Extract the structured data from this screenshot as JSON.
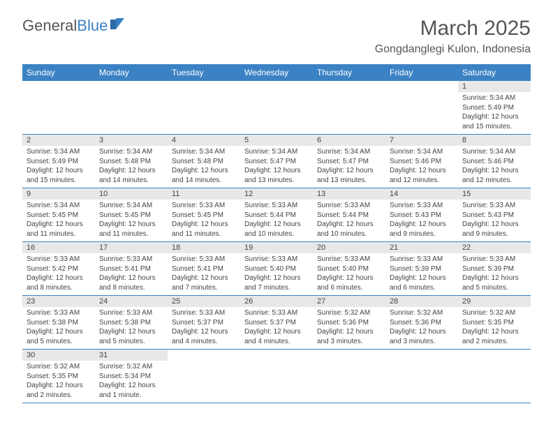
{
  "logo": {
    "text1": "General",
    "text2": "Blue"
  },
  "title": "March 2025",
  "location": "Gongdanglegi Kulon, Indonesia",
  "colors": {
    "header_bg": "#3b82c4",
    "header_text": "#ffffff",
    "daynum_bg": "#e8e8e8",
    "border": "#3b82c4"
  },
  "day_headers": [
    "Sunday",
    "Monday",
    "Tuesday",
    "Wednesday",
    "Thursday",
    "Friday",
    "Saturday"
  ],
  "weeks": [
    [
      null,
      null,
      null,
      null,
      null,
      null,
      {
        "n": "1",
        "sr": "Sunrise: 5:34 AM",
        "ss": "Sunset: 5:49 PM",
        "dl": "Daylight: 12 hours and 15 minutes."
      }
    ],
    [
      {
        "n": "2",
        "sr": "Sunrise: 5:34 AM",
        "ss": "Sunset: 5:49 PM",
        "dl": "Daylight: 12 hours and 15 minutes."
      },
      {
        "n": "3",
        "sr": "Sunrise: 5:34 AM",
        "ss": "Sunset: 5:48 PM",
        "dl": "Daylight: 12 hours and 14 minutes."
      },
      {
        "n": "4",
        "sr": "Sunrise: 5:34 AM",
        "ss": "Sunset: 5:48 PM",
        "dl": "Daylight: 12 hours and 14 minutes."
      },
      {
        "n": "5",
        "sr": "Sunrise: 5:34 AM",
        "ss": "Sunset: 5:47 PM",
        "dl": "Daylight: 12 hours and 13 minutes."
      },
      {
        "n": "6",
        "sr": "Sunrise: 5:34 AM",
        "ss": "Sunset: 5:47 PM",
        "dl": "Daylight: 12 hours and 13 minutes."
      },
      {
        "n": "7",
        "sr": "Sunrise: 5:34 AM",
        "ss": "Sunset: 5:46 PM",
        "dl": "Daylight: 12 hours and 12 minutes."
      },
      {
        "n": "8",
        "sr": "Sunrise: 5:34 AM",
        "ss": "Sunset: 5:46 PM",
        "dl": "Daylight: 12 hours and 12 minutes."
      }
    ],
    [
      {
        "n": "9",
        "sr": "Sunrise: 5:34 AM",
        "ss": "Sunset: 5:45 PM",
        "dl": "Daylight: 12 hours and 11 minutes."
      },
      {
        "n": "10",
        "sr": "Sunrise: 5:34 AM",
        "ss": "Sunset: 5:45 PM",
        "dl": "Daylight: 12 hours and 11 minutes."
      },
      {
        "n": "11",
        "sr": "Sunrise: 5:33 AM",
        "ss": "Sunset: 5:45 PM",
        "dl": "Daylight: 12 hours and 11 minutes."
      },
      {
        "n": "12",
        "sr": "Sunrise: 5:33 AM",
        "ss": "Sunset: 5:44 PM",
        "dl": "Daylight: 12 hours and 10 minutes."
      },
      {
        "n": "13",
        "sr": "Sunrise: 5:33 AM",
        "ss": "Sunset: 5:44 PM",
        "dl": "Daylight: 12 hours and 10 minutes."
      },
      {
        "n": "14",
        "sr": "Sunrise: 5:33 AM",
        "ss": "Sunset: 5:43 PM",
        "dl": "Daylight: 12 hours and 9 minutes."
      },
      {
        "n": "15",
        "sr": "Sunrise: 5:33 AM",
        "ss": "Sunset: 5:43 PM",
        "dl": "Daylight: 12 hours and 9 minutes."
      }
    ],
    [
      {
        "n": "16",
        "sr": "Sunrise: 5:33 AM",
        "ss": "Sunset: 5:42 PM",
        "dl": "Daylight: 12 hours and 8 minutes."
      },
      {
        "n": "17",
        "sr": "Sunrise: 5:33 AM",
        "ss": "Sunset: 5:41 PM",
        "dl": "Daylight: 12 hours and 8 minutes."
      },
      {
        "n": "18",
        "sr": "Sunrise: 5:33 AM",
        "ss": "Sunset: 5:41 PM",
        "dl": "Daylight: 12 hours and 7 minutes."
      },
      {
        "n": "19",
        "sr": "Sunrise: 5:33 AM",
        "ss": "Sunset: 5:40 PM",
        "dl": "Daylight: 12 hours and 7 minutes."
      },
      {
        "n": "20",
        "sr": "Sunrise: 5:33 AM",
        "ss": "Sunset: 5:40 PM",
        "dl": "Daylight: 12 hours and 6 minutes."
      },
      {
        "n": "21",
        "sr": "Sunrise: 5:33 AM",
        "ss": "Sunset: 5:39 PM",
        "dl": "Daylight: 12 hours and 6 minutes."
      },
      {
        "n": "22",
        "sr": "Sunrise: 5:33 AM",
        "ss": "Sunset: 5:39 PM",
        "dl": "Daylight: 12 hours and 5 minutes."
      }
    ],
    [
      {
        "n": "23",
        "sr": "Sunrise: 5:33 AM",
        "ss": "Sunset: 5:38 PM",
        "dl": "Daylight: 12 hours and 5 minutes."
      },
      {
        "n": "24",
        "sr": "Sunrise: 5:33 AM",
        "ss": "Sunset: 5:38 PM",
        "dl": "Daylight: 12 hours and 5 minutes."
      },
      {
        "n": "25",
        "sr": "Sunrise: 5:33 AM",
        "ss": "Sunset: 5:37 PM",
        "dl": "Daylight: 12 hours and 4 minutes."
      },
      {
        "n": "26",
        "sr": "Sunrise: 5:33 AM",
        "ss": "Sunset: 5:37 PM",
        "dl": "Daylight: 12 hours and 4 minutes."
      },
      {
        "n": "27",
        "sr": "Sunrise: 5:32 AM",
        "ss": "Sunset: 5:36 PM",
        "dl": "Daylight: 12 hours and 3 minutes."
      },
      {
        "n": "28",
        "sr": "Sunrise: 5:32 AM",
        "ss": "Sunset: 5:36 PM",
        "dl": "Daylight: 12 hours and 3 minutes."
      },
      {
        "n": "29",
        "sr": "Sunrise: 5:32 AM",
        "ss": "Sunset: 5:35 PM",
        "dl": "Daylight: 12 hours and 2 minutes."
      }
    ],
    [
      {
        "n": "30",
        "sr": "Sunrise: 5:32 AM",
        "ss": "Sunset: 5:35 PM",
        "dl": "Daylight: 12 hours and 2 minutes."
      },
      {
        "n": "31",
        "sr": "Sunrise: 5:32 AM",
        "ss": "Sunset: 5:34 PM",
        "dl": "Daylight: 12 hours and 1 minute."
      },
      null,
      null,
      null,
      null,
      null
    ]
  ]
}
